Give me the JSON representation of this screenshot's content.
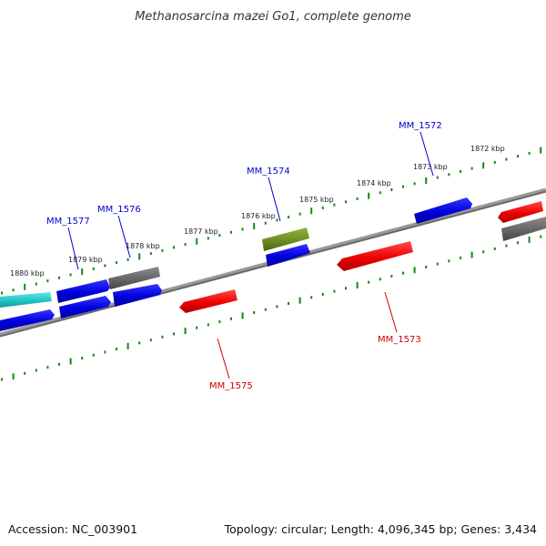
{
  "title": "Methanosarcina mazei Go1, complete genome",
  "footer": {
    "accession": "Accession: NC_003901",
    "summary": "Topology: circular; Length: 4,096,345 bp; Genes: 3,434"
  },
  "scale_labels": [
    "1880 kbp",
    "1879 kbp",
    "1878 kbp",
    "1877 kbp",
    "1876 kbp",
    "1875 kbp",
    "1874 kbp",
    "1873 kbp",
    "1872 kbp"
  ],
  "gene_labels": {
    "mm1577": "MM_1577",
    "mm1576": "MM_1576",
    "mm1574": "MM_1574",
    "mm1572": "MM_1572",
    "mm1573": "MM_1573",
    "mm1575": "MM_1575"
  },
  "colors": {
    "forward_gene": "#0000dd",
    "reverse_gene": "#ee0000",
    "hypothetical_gene": "#666666",
    "rna_gene": "#33cccc",
    "other_gene": "#6b8e23",
    "backbone": "#777777",
    "scale_ticks": "#118811",
    "forward_label": "#0000cc",
    "reverse_label": "#cc0000"
  }
}
